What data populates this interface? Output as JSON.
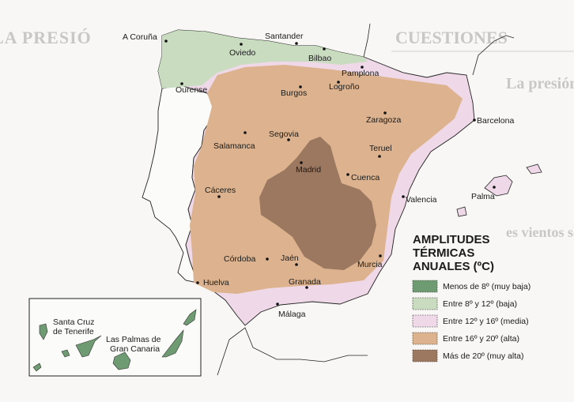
{
  "background_text": {
    "heading_1": "CUESTIONES",
    "heading_2": "LA PRESIÓ",
    "line_1": "La presión atm",
    "line_2": "es vientos son"
  },
  "legend": {
    "title_lines": [
      "AMPLITUDES",
      "TÉRMICAS",
      "ANUALES (ºC)"
    ],
    "items": [
      {
        "label": "Menos de 8º (muy baja)",
        "color": "#6f9b73"
      },
      {
        "label": "Entre 8º y 12º (baja)",
        "color": "#c9dcc0"
      },
      {
        "label": "Entre 12º y 16º (media)",
        "color": "#efd9e8"
      },
      {
        "label": "Entre 16º y 20º (alta)",
        "color": "#dcb38e"
      },
      {
        "label": "Más de 20º (muy alta)",
        "color": "#9c7860"
      }
    ]
  },
  "cities": [
    "A Coruña",
    "Oviedo",
    "Santander",
    "Bilbao",
    "Pamplona",
    "Ourense",
    "Burgos",
    "Logroño",
    "Zaragoza",
    "Barcelona",
    "Segovia",
    "Salamanca",
    "Madrid",
    "Teruel",
    "Cuenca",
    "Cáceres",
    "Valencia",
    "Palma",
    "Córdoba",
    "Jaén",
    "Murcia",
    "Huelva",
    "Granada",
    "Málaga"
  ],
  "canarias": {
    "tenerife": [
      "Santa Cruz",
      "de Tenerife"
    ],
    "gran_canaria": [
      "Las Palmas de",
      "Gran Canaria"
    ]
  }
}
